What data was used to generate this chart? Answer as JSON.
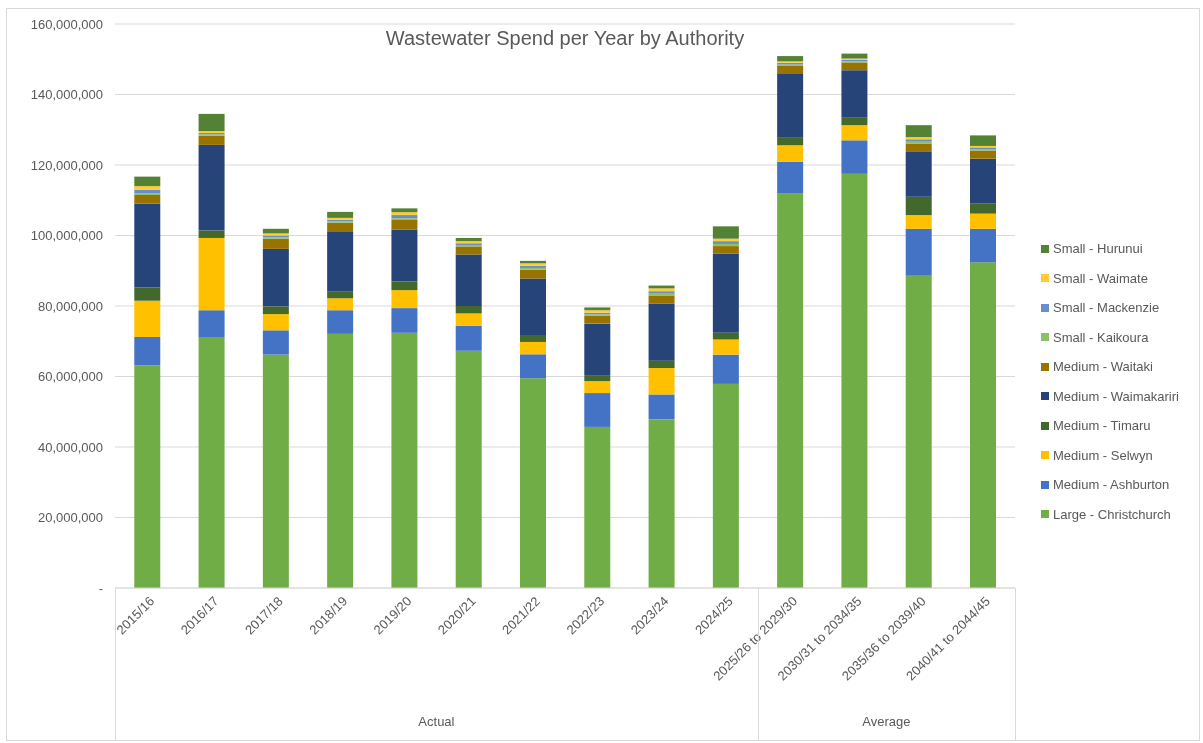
{
  "chart_data": {
    "type": "bar",
    "stacked": true,
    "title": "Wastewater Spend per Year by Authority",
    "categories": [
      "2015/16",
      "2016/17",
      "2017/18",
      "2018/19",
      "2019/20",
      "2020/21",
      "2021/22",
      "2022/23",
      "2023/24",
      "2024/25",
      "2025/26 to 2029/30",
      "2030/31 to 2034/35",
      "2035/36 to 2039/40",
      "2040/41 to 2044/45"
    ],
    "series": [
      {
        "name": "Large - Christchurch",
        "color": "#70ad47",
        "values": [
          63200000,
          71000000,
          66200000,
          72100000,
          72400000,
          67300000,
          59500000,
          45700000,
          47900000,
          57900000,
          111900000,
          117500000,
          88600000,
          92400000
        ]
      },
      {
        "name": "Medium - Ashburton",
        "color": "#4472c4",
        "values": [
          8000000,
          7800000,
          6900000,
          6700000,
          7000000,
          7100000,
          6800000,
          9600000,
          7000000,
          8300000,
          9000000,
          9500000,
          13300000,
          9500000
        ]
      },
      {
        "name": "Medium - Selwyn",
        "color": "#ffc000",
        "values": [
          10300000,
          20500000,
          4600000,
          3400000,
          5100000,
          3500000,
          3500000,
          3400000,
          7500000,
          4300000,
          4700000,
          4300000,
          3900000,
          4300000
        ]
      },
      {
        "name": "Medium - Timaru",
        "color": "#43682b",
        "values": [
          3800000,
          2100000,
          2200000,
          2000000,
          2500000,
          2100000,
          2000000,
          1700000,
          2100000,
          1900000,
          2300000,
          2100000,
          5200000,
          2900000
        ]
      },
      {
        "name": "Medium - Waimakariri",
        "color": "#264478",
        "values": [
          23800000,
          24300000,
          16300000,
          17000000,
          14700000,
          14600000,
          16000000,
          14600000,
          16200000,
          22500000,
          18100000,
          13500000,
          12700000,
          12700000
        ]
      },
      {
        "name": "Medium - Waitaki",
        "color": "#997300",
        "values": [
          2400000,
          2600000,
          2900000,
          2400000,
          2700000,
          2300000,
          2500000,
          2200000,
          2300000,
          2100000,
          2100000,
          2200000,
          2400000,
          2300000
        ]
      },
      {
        "name": "Small - Kaikoura",
        "color": "#8cc168",
        "values": [
          500000,
          400000,
          400000,
          400000,
          500000,
          400000,
          500000,
          400000,
          500000,
          600000,
          400000,
          300000,
          500000,
          400000
        ]
      },
      {
        "name": "Small - Mackenzie",
        "color": "#698ed0",
        "values": [
          1000000,
          400000,
          500000,
          500000,
          900000,
          500000,
          600000,
          500000,
          700000,
          800000,
          500000,
          400000,
          700000,
          500000
        ]
      },
      {
        "name": "Small - Waimate",
        "color": "#ffcd33",
        "values": [
          1000000,
          500000,
          600000,
          500000,
          800000,
          600000,
          700000,
          700000,
          800000,
          700000,
          400000,
          400000,
          600000,
          400000
        ]
      },
      {
        "name": "Small - Hurunui",
        "color": "#548235",
        "values": [
          2700000,
          4900000,
          1300000,
          1700000,
          1100000,
          900000,
          700000,
          800000,
          800000,
          3500000,
          1500000,
          1400000,
          3400000,
          3000000
        ]
      }
    ],
    "ylim": [
      0,
      160000000
    ],
    "yticks": [
      {
        "value": 0,
        "label": "-"
      },
      {
        "value": 20000000,
        "label": "20,000,000"
      },
      {
        "value": 40000000,
        "label": "40,000,000"
      },
      {
        "value": 60000000,
        "label": "60,000,000"
      },
      {
        "value": 80000000,
        "label": "80,000,000"
      },
      {
        "value": 100000000,
        "label": "100,000,000"
      },
      {
        "value": 120000000,
        "label": "120,000,000"
      },
      {
        "value": 140000000,
        "label": "140,000,000"
      },
      {
        "value": 160000000,
        "label": "160,000,000"
      }
    ],
    "grid": "y",
    "legend": "right",
    "annotations": [
      "Actual",
      "Average"
    ]
  }
}
